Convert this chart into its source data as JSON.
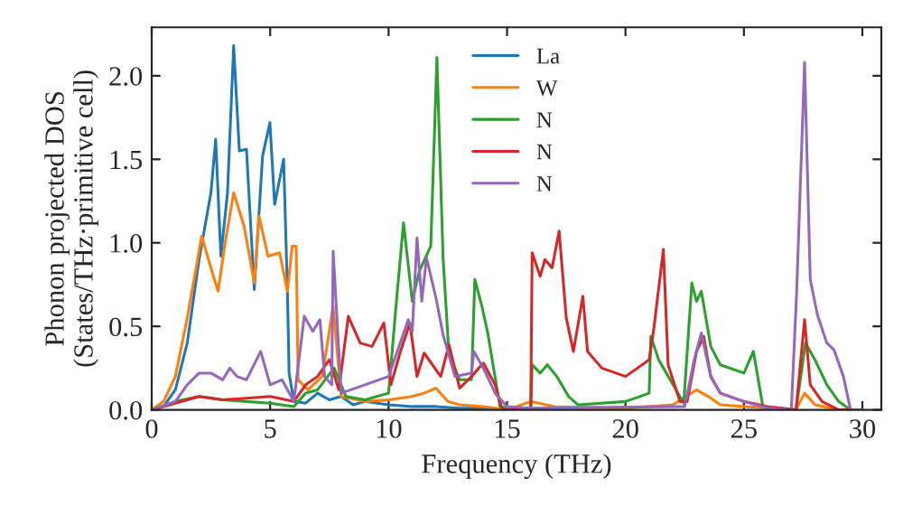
{
  "chart_data": {
    "type": "line",
    "xlabel": "Frequency (THz)",
    "ylabel": "Phonon projected DOS\n(States/THz·primitive cell)",
    "xlim": [
      0,
      30.8
    ],
    "xticks": [
      0,
      5,
      10,
      15,
      20,
      25,
      30
    ],
    "ylim": [
      0,
      2.29
    ],
    "yticks": [
      {
        "value": 0,
        "label": "0.0"
      },
      {
        "value": 0.5,
        "label": "0.5"
      },
      {
        "value": 1,
        "label": "1.0"
      },
      {
        "value": 1.5,
        "label": "1.5"
      },
      {
        "value": 2,
        "label": "2.0"
      }
    ],
    "legend": "top",
    "grid": false,
    "marker": "none",
    "line_style": "solid",
    "series": [
      {
        "name": "La",
        "color": "#1f77b4",
        "x": [
          0,
          0.5,
          1,
          1.5,
          2,
          2.5,
          2.7,
          2.92,
          3.2,
          3.46,
          3.7,
          4.0,
          4.33,
          4.68,
          4.99,
          5.19,
          5.57,
          5.73,
          5.8,
          6.0,
          6.5,
          7,
          7.5,
          8,
          8.5,
          9,
          10,
          11,
          12,
          13,
          14,
          15
        ],
        "values": [
          0,
          0.02,
          0.12,
          0.4,
          0.9,
          1.3,
          1.62,
          0.92,
          1.3,
          2.18,
          1.55,
          1.56,
          0.72,
          1.52,
          1.72,
          1.23,
          1.5,
          0.71,
          0.22,
          0.05,
          0.04,
          0.1,
          0.06,
          0.08,
          0.03,
          0.05,
          0.03,
          0.02,
          0.02,
          0.01,
          0.01,
          0
        ]
      },
      {
        "name": "W",
        "color": "#ff7f0e",
        "x": [
          0,
          0.5,
          1,
          1.5,
          2.11,
          2.5,
          2.8,
          3.1,
          3.46,
          3.9,
          4.33,
          4.53,
          4.91,
          5.4,
          5.73,
          5.93,
          6.1,
          6.18,
          6.6,
          7.2,
          7.66,
          8.0,
          9,
          10,
          11,
          11.5,
          12,
          12.5,
          13,
          14,
          15,
          16,
          17,
          20,
          22,
          23,
          23.5,
          24,
          26,
          27.2,
          27.56,
          28,
          29,
          30
        ],
        "values": [
          0,
          0.05,
          0.2,
          0.55,
          1.04,
          0.85,
          0.71,
          1.0,
          1.3,
          1.1,
          0.76,
          1.16,
          0.92,
          0.94,
          0.71,
          0.98,
          0.98,
          0.18,
          0.12,
          0.2,
          0.62,
          0.08,
          0.05,
          0.06,
          0.08,
          0.1,
          0.13,
          0.05,
          0.03,
          0.02,
          0,
          0.05,
          0.02,
          0.01,
          0.03,
          0.12,
          0.08,
          0.03,
          0.01,
          0,
          0.1,
          0.03,
          0,
          0
        ]
      },
      {
        "name": "N",
        "color": "#2ca02c",
        "x": [
          0,
          1,
          2,
          3,
          4,
          5,
          6,
          6.5,
          7,
          7.7,
          8.2,
          9,
          10,
          10.3,
          10.63,
          11.0,
          11.3,
          11.78,
          12.04,
          12.3,
          12.55,
          13.0,
          13.5,
          13.64,
          13.94,
          14.2,
          14.7,
          15.5,
          16.0,
          16.06,
          16.4,
          16.7,
          17.1,
          17.6,
          18,
          20,
          21,
          21.07,
          21.4,
          22.46,
          22.8,
          23.0,
          23.2,
          23.6,
          24,
          25,
          25.4,
          25.8,
          27.2,
          27.6,
          28,
          28.5,
          29,
          29.5,
          30
        ],
        "values": [
          0,
          0.05,
          0.08,
          0.06,
          0.05,
          0.04,
          0.02,
          0.1,
          0.12,
          0.25,
          0.08,
          0.06,
          0.1,
          0.6,
          1.12,
          0.65,
          0.83,
          0.98,
          2.11,
          0.91,
          0.33,
          0.18,
          0.18,
          0.78,
          0.62,
          0.45,
          0.02,
          0,
          0,
          0.27,
          0.22,
          0.27,
          0.2,
          0.08,
          0.03,
          0.05,
          0.1,
          0.44,
          0.3,
          0.04,
          0.76,
          0.65,
          0.71,
          0.38,
          0.27,
          0.22,
          0.35,
          0.02,
          0,
          0.4,
          0.3,
          0.15,
          0.05,
          0,
          0
        ]
      },
      {
        "name": "N",
        "color": "#d62728",
        "x": [
          0,
          1,
          2,
          3,
          4,
          5,
          6,
          6.5,
          7,
          7.5,
          7.9,
          8.3,
          8.8,
          9.3,
          9.8,
          10.1,
          10.5,
          10.9,
          11.2,
          11.5,
          12.2,
          12.55,
          13.0,
          13.5,
          14,
          14.5,
          14.8,
          16.0,
          16.06,
          16.4,
          16.6,
          16.9,
          17.2,
          17.5,
          17.8,
          18.2,
          18.4,
          19,
          20,
          21,
          21.2,
          21.6,
          21.8,
          22.3,
          22.6,
          23.0,
          23.3,
          23.6,
          24,
          25,
          26,
          27.2,
          27.56,
          27.8,
          28.3,
          29,
          30
        ],
        "values": [
          0,
          0.04,
          0.08,
          0.06,
          0.07,
          0.08,
          0.05,
          0.15,
          0.2,
          0.3,
          0.12,
          0.56,
          0.4,
          0.38,
          0.52,
          0.15,
          0.35,
          0.52,
          0.2,
          0.34,
          0.2,
          0.39,
          0.13,
          0.2,
          0.28,
          0.15,
          0,
          0,
          0.94,
          0.8,
          0.9,
          0.85,
          1.07,
          0.55,
          0.35,
          0.68,
          0.35,
          0.25,
          0.2,
          0.3,
          0.49,
          0.96,
          0.27,
          0.05,
          0.05,
          0.35,
          0.44,
          0.2,
          0.1,
          0.05,
          0.02,
          0,
          0.54,
          0.15,
          0.05,
          0,
          0
        ]
      },
      {
        "name": "N",
        "color": "#9467bd",
        "x": [
          0,
          1,
          1.5,
          2,
          2.5,
          3,
          3.3,
          3.6,
          4,
          4.6,
          5,
          5.5,
          6,
          6.44,
          6.8,
          7.1,
          7.3,
          7.6,
          7.66,
          8.0,
          9,
          10,
          10.83,
          11.0,
          11.2,
          11.4,
          11.6,
          12.0,
          12.3,
          12.8,
          13.5,
          13.6,
          14.0,
          14.5,
          15,
          16,
          22.5,
          22.9,
          23.2,
          23.6,
          24,
          25,
          26,
          27.0,
          27.23,
          27.56,
          27.8,
          28.1,
          28.5,
          28.8,
          29.2,
          29.5,
          30
        ],
        "values": [
          0,
          0.05,
          0.15,
          0.22,
          0.22,
          0.18,
          0.25,
          0.2,
          0.18,
          0.35,
          0.15,
          0.18,
          0.05,
          0.56,
          0.47,
          0.54,
          0.2,
          0.15,
          0.95,
          0.1,
          0.15,
          0.2,
          0.54,
          0.47,
          1.03,
          0.65,
          0.91,
          0.67,
          0.45,
          0.2,
          0.22,
          0.35,
          0.25,
          0.1,
          0.02,
          0.01,
          0.02,
          0.3,
          0.46,
          0.2,
          0.1,
          0.05,
          0.01,
          0,
          0.72,
          2.08,
          0.78,
          0.57,
          0.4,
          0.36,
          0.2,
          0,
          0
        ]
      }
    ]
  }
}
